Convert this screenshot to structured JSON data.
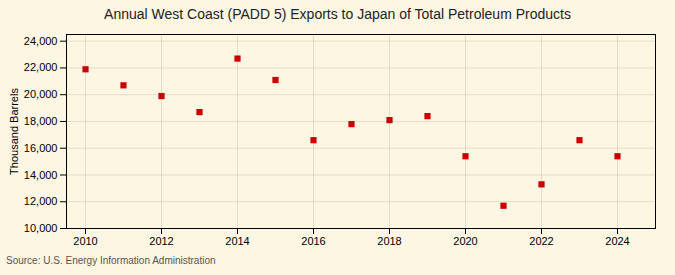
{
  "chart_data": {
    "type": "scatter",
    "title": "Annual West Coast (PADD 5) Exports to Japan of Total Petroleum Products",
    "ylabel": "Thousand Barrels",
    "source": "Source: U.S. Energy Information Administration",
    "x": [
      2010,
      2011,
      2012,
      2013,
      2014,
      2015,
      2016,
      2017,
      2018,
      2019,
      2020,
      2021,
      2022,
      2023,
      2024
    ],
    "values": [
      21900,
      20700,
      19900,
      18700,
      22700,
      21100,
      16600,
      17800,
      18100,
      18400,
      15400,
      11700,
      13300,
      16600,
      15400
    ],
    "color": "#cc0000",
    "marker": "square",
    "xlim": [
      2009.5,
      2025.0
    ],
    "ylim": [
      10000,
      24500
    ],
    "xticks": [
      2010,
      2012,
      2014,
      2016,
      2018,
      2020,
      2022,
      2024
    ],
    "yticks": [
      {
        "value": 10000,
        "label": "10,000"
      },
      {
        "value": 12000,
        "label": "12,000"
      },
      {
        "value": 14000,
        "label": "14,000"
      },
      {
        "value": 16000,
        "label": "16,000"
      },
      {
        "value": 18000,
        "label": "18,000"
      },
      {
        "value": 20000,
        "label": "20,000"
      },
      {
        "value": 22000,
        "label": "22,000"
      },
      {
        "value": 24000,
        "label": "24,000"
      }
    ],
    "grid": true
  }
}
